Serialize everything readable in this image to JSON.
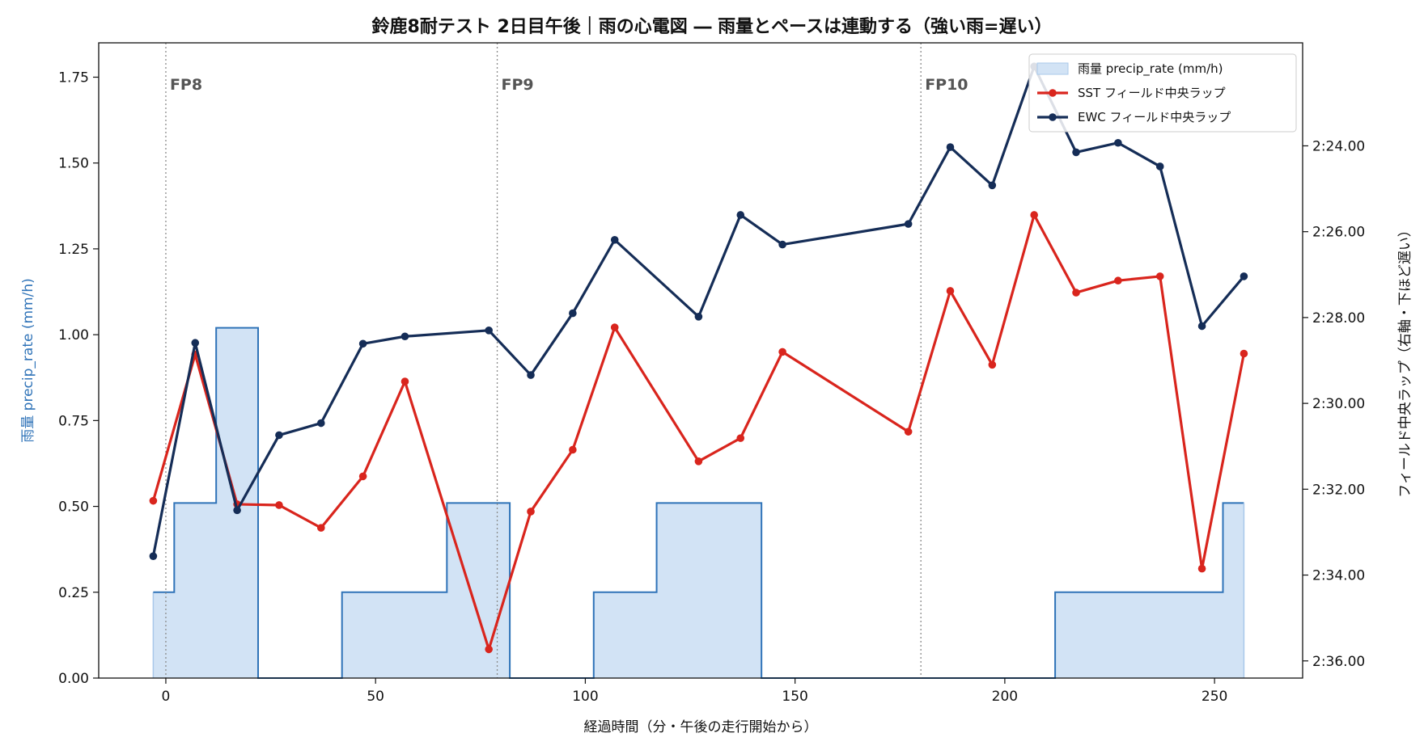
{
  "chart_data": {
    "type": "line",
    "title": "鈴鹿8耐テスト 2日目午後｜雨の心電図 ― 雨量とペースは連動する（強い雨=遅い）",
    "xlabel": "経過時間（分・午後の走行開始から）",
    "ylabel_left": "雨量 precip_rate (mm/h)",
    "ylabel_right": "フィールド中央ラップ（右軸・下ほど遅い）",
    "xlim": [
      -16,
      271
    ],
    "x_ticks": [
      "0",
      "50",
      "100",
      "150",
      "200",
      "250"
    ],
    "x_tick_values": [
      0,
      50,
      100,
      150,
      200,
      250
    ],
    "ylim_left": [
      0,
      1.85
    ],
    "left_ticks": [
      "0.00",
      "0.25",
      "0.50",
      "0.75",
      "1.00",
      "1.25",
      "1.50",
      "1.75"
    ],
    "left_tick_values": [
      0,
      0.25,
      0.5,
      0.75,
      1.0,
      1.25,
      1.5,
      1.75
    ],
    "right_axis_inverted": true,
    "right_axis_unit": "seconds of lap time",
    "right_range_seconds": [
      141.6,
      156.4
    ],
    "right_ticks": [
      "2:24.00",
      "2:26.00",
      "2:28.00",
      "2:30.00",
      "2:32.00",
      "2:34.00",
      "2:36.00"
    ],
    "right_tick_seconds": [
      144,
      146,
      148,
      150,
      152,
      154,
      156
    ],
    "flag_lines": [
      {
        "x": 0,
        "label": "FP8"
      },
      {
        "x": 79,
        "label": "FP9"
      },
      {
        "x": 180,
        "label": "FP10"
      }
    ],
    "precip": {
      "name": "雨量 precip_rate (mm/h)",
      "color": "#2f73b8",
      "fill": "#d2e3f5",
      "steps": [
        {
          "x0": -3,
          "x1": 2,
          "y": 0.25
        },
        {
          "x0": 2,
          "x1": 12,
          "y": 0.51
        },
        {
          "x0": 12,
          "x1": 22,
          "y": 1.02
        },
        {
          "x0": 22,
          "x1": 42,
          "y": 0
        },
        {
          "x0": 42,
          "x1": 67,
          "y": 0.25
        },
        {
          "x0": 67,
          "x1": 82,
          "y": 0.51
        },
        {
          "x0": 82,
          "x1": 102,
          "y": 0
        },
        {
          "x0": 102,
          "x1": 117,
          "y": 0.25
        },
        {
          "x0": 117,
          "x1": 142,
          "y": 0.51
        },
        {
          "x0": 142,
          "x1": 212,
          "y": 0
        },
        {
          "x0": 212,
          "x1": 252,
          "y": 0.25
        },
        {
          "x0": 252,
          "x1": 257,
          "y": 0.51
        }
      ]
    },
    "series": [
      {
        "name": "SST フィールド中央ラップ",
        "color": "#d9251d",
        "x": [
          -3,
          7,
          17,
          27,
          37,
          47,
          57,
          77,
          87,
          97,
          107,
          127,
          137,
          147,
          177,
          187,
          197,
          207,
          217,
          227,
          237,
          247,
          257
        ],
        "lap_seconds": [
          152.27,
          148.86,
          152.35,
          152.37,
          152.9,
          151.7,
          149.49,
          155.73,
          152.52,
          151.08,
          148.23,
          151.35,
          150.81,
          148.8,
          150.66,
          147.38,
          149.1,
          145.61,
          147.42,
          147.14,
          147.04,
          153.85,
          148.84
        ]
      },
      {
        "name": "EWC フィールド中央ラップ",
        "color": "#152d57",
        "x": [
          -3,
          7,
          17,
          27,
          37,
          47,
          57,
          77,
          87,
          97,
          107,
          127,
          137,
          147,
          177,
          187,
          197,
          207,
          217,
          227,
          237,
          247,
          257
        ],
        "lap_seconds": [
          153.56,
          148.59,
          152.49,
          150.74,
          150.46,
          148.61,
          148.44,
          148.3,
          149.34,
          147.9,
          146.19,
          147.98,
          145.61,
          146.3,
          145.82,
          144.03,
          144.92,
          142.15,
          144.15,
          143.93,
          144.48,
          148.2,
          147.04
        ]
      }
    ],
    "legend_position": "top-right",
    "grid": false
  }
}
